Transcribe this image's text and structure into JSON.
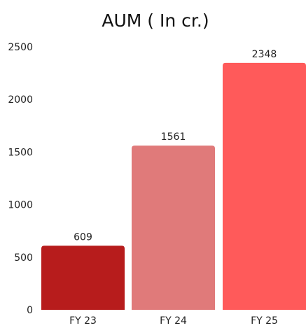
{
  "chart_data": {
    "type": "bar",
    "title": "AUM ( In cr.)",
    "xlabel": "",
    "ylabel": "",
    "categories": [
      "FY 23",
      "FY 24",
      "FY 25"
    ],
    "values": [
      609,
      1561,
      2348
    ],
    "data_labels": [
      "609",
      "1561",
      "2348"
    ],
    "bar_colors": [
      "#b71c1c",
      "#e07a7a",
      "#ff5a5a"
    ],
    "ylim": [
      0,
      2500
    ],
    "yticks": [
      0,
      500,
      1000,
      1500,
      2000,
      2500
    ],
    "ytick_labels": [
      "0",
      "500",
      "1000",
      "1500",
      "2000",
      "2500"
    ],
    "grid": false,
    "legend": "none"
  }
}
